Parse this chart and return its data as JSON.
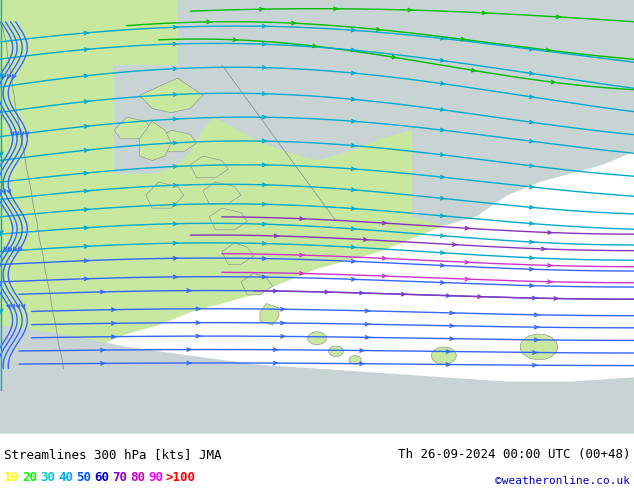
{
  "title_left": "Streamlines 300 hPa [kts] JMA",
  "title_right": "Th 26-09-2024 00:00 UTC (00+48)",
  "credit": "©weatheronline.co.uk",
  "legend_values": [
    "10",
    "20",
    "30",
    "40",
    "50",
    "60",
    "70",
    "80",
    "90",
    ">100"
  ],
  "legend_colors": [
    "#ffff00",
    "#00ff00",
    "#00cccc",
    "#00aaff",
    "#0055ff",
    "#0000cc",
    "#8800cc",
    "#cc00cc",
    "#ff00ff",
    "#ff0000"
  ],
  "land_color": "#c8e8a0",
  "ocean_color": "#c8d4d4",
  "fig_width": 6.34,
  "fig_height": 4.9,
  "dpi": 100,
  "bottom_bar_color": "#ffffff",
  "text_color": "#000000",
  "credit_color": "#0000cc",
  "coast_color": "#888888",
  "green_stream": "#00bb00",
  "cyan_stream": "#00aacc",
  "blue_stream": "#3366ff",
  "darkblue_stream": "#0000cc",
  "purple_stream": "#8833bb",
  "magenta_stream": "#cc33cc"
}
